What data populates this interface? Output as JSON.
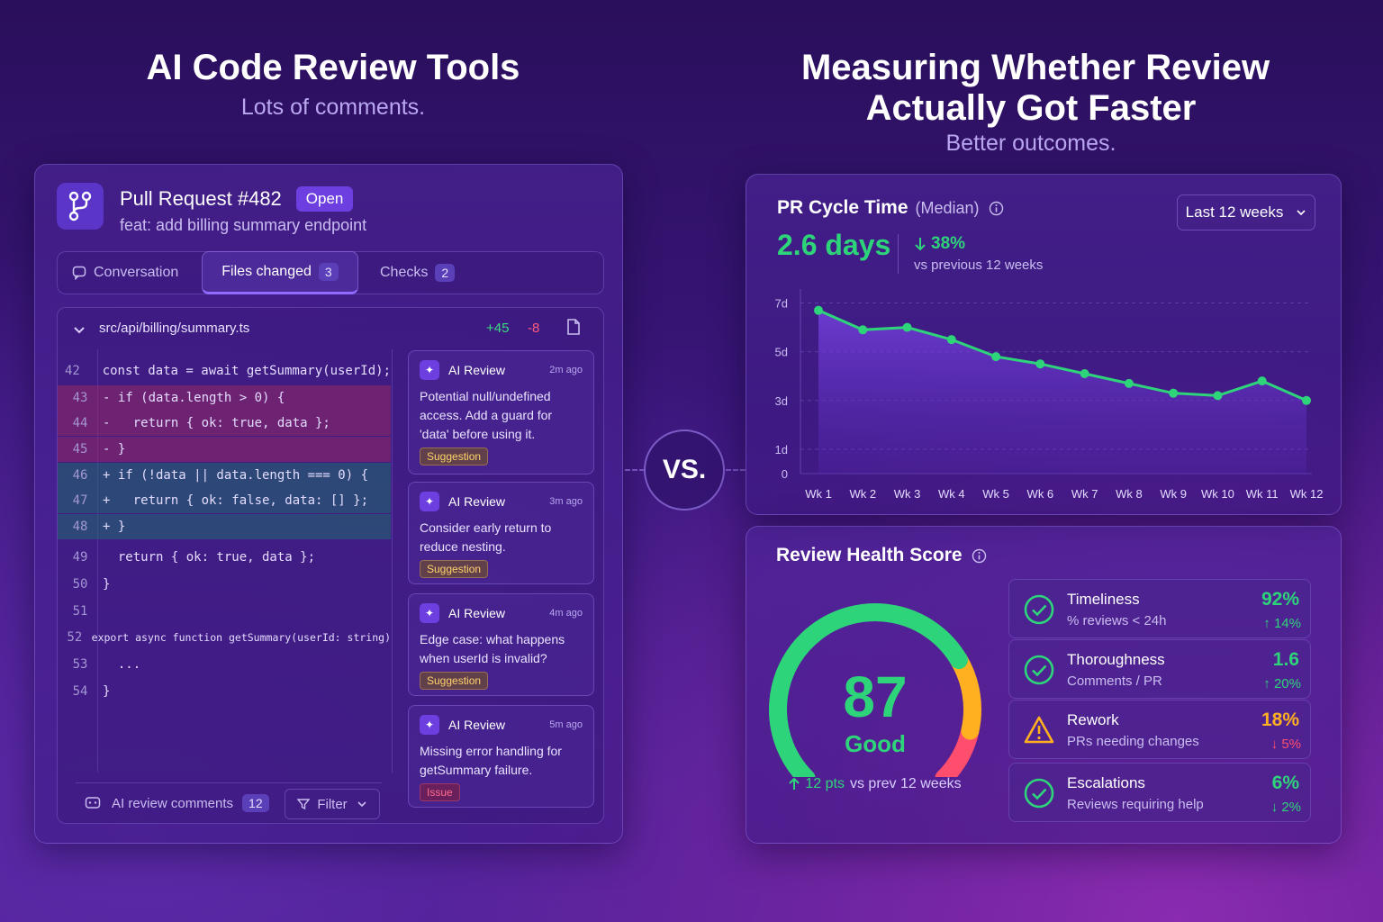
{
  "left": {
    "title": "AI Code Review Tools",
    "subtitle": "Lots of comments.",
    "pr": {
      "title": "Pull Request #482",
      "status": "Open",
      "description": "feat: add billing summary endpoint"
    },
    "tabs": [
      {
        "label": "Conversation",
        "count": ""
      },
      {
        "label": "Files changed",
        "count": "3"
      },
      {
        "label": "Checks",
        "count": "2"
      }
    ],
    "file": {
      "path": "src/api/billing/summary.ts",
      "additions": "+45",
      "deletions": "-8"
    },
    "code_lines": [
      {
        "num": "42",
        "code": "  const data = await getSummary(userId);",
        "type": "normal"
      },
      {
        "num": "43",
        "code": "- if (data.length > 0) {",
        "type": "del"
      },
      {
        "num": "44",
        "code": "-   return { ok: true, data };",
        "type": "del"
      },
      {
        "num": "45",
        "code": "- }",
        "type": "del"
      },
      {
        "num": "46",
        "code": "+ if (!data || data.length === 0) {",
        "type": "add"
      },
      {
        "num": "47",
        "code": "+   return { ok: false, data: [] };",
        "type": "add"
      },
      {
        "num": "48",
        "code": "+ }",
        "type": "add"
      },
      {
        "num": "49",
        "code": "  return { ok: true, data };",
        "type": "normal"
      },
      {
        "num": "50",
        "code": "}",
        "type": "normal"
      },
      {
        "num": "51",
        "code": "",
        "type": "normal"
      },
      {
        "num": "52",
        "code": "export async function getSummary(userId: string)",
        "type": "normal"
      },
      {
        "num": "53",
        "code": "  ...",
        "type": "normal"
      },
      {
        "num": "54",
        "code": "}",
        "type": "normal"
      }
    ],
    "comments": [
      {
        "author": "AI Review",
        "time": "2m ago",
        "text": "Potential null/undefined access. Add a guard for 'data' before using it.",
        "tag": "Suggestion"
      },
      {
        "author": "AI Review",
        "time": "3m ago",
        "text": "Consider early return to reduce nesting.",
        "tag": "Suggestion"
      },
      {
        "author": "AI Review",
        "time": "4m ago",
        "text": "Edge case: what happens when userId is invalid?",
        "tag": "Suggestion"
      },
      {
        "author": "AI Review",
        "time": "5m ago",
        "text": "Missing error handling for getSummary failure.",
        "tag": "Issue"
      }
    ],
    "footer": {
      "ai_comments_label": "AI review comments",
      "ai_comments_count": "12",
      "filter_label": "Filter"
    }
  },
  "vs_label": "VS.",
  "right": {
    "title_line1": "Measuring Whether Review",
    "title_line2": "Actually Got Faster",
    "subtitle": "Better outcomes.",
    "cycle": {
      "title": "PR Cycle Time",
      "title_qualifier": "(Median)",
      "range_select": "Last 12 weeks",
      "value": "2.6 days",
      "change": "38%",
      "change_caption": "vs previous 12 weeks"
    },
    "health": {
      "title": "Review Health Score",
      "score": 87,
      "score_label": "Good",
      "change": "12 pts",
      "change_caption": "vs prev 12 weeks",
      "metrics": [
        {
          "name": "Timeliness",
          "desc": "% reviews < 24h",
          "value": "92%",
          "delta": "14%",
          "direction": "up",
          "status": "good"
        },
        {
          "name": "Thoroughness",
          "desc": "Comments / PR",
          "value": "1.6",
          "delta": "20%",
          "direction": "up",
          "status": "good"
        },
        {
          "name": "Rework",
          "desc": "PRs needing changes",
          "value": "18%",
          "delta": "5%",
          "direction": "down",
          "status": "warning"
        },
        {
          "name": "Escalations",
          "desc": "Reviews requiring help",
          "value": "6%",
          "delta": "2%",
          "direction": "down",
          "status": "good"
        }
      ]
    }
  },
  "chart_data": {
    "type": "line",
    "categories": [
      "Wk 1",
      "Wk 2",
      "Wk 3",
      "Wk 4",
      "Wk 5",
      "Wk 6",
      "Wk 7",
      "Wk 8",
      "Wk 9",
      "Wk 10",
      "Wk 11",
      "Wk 12"
    ],
    "series": [
      {
        "values": [
          6.7,
          5.9,
          6.0,
          5.5,
          4.8,
          4.5,
          4.1,
          3.7,
          3.3,
          3.2,
          3.8,
          3.0
        ]
      }
    ],
    "y_ticks": [
      "0",
      "1d",
      "3d",
      "5d",
      "7d"
    ],
    "ylim": [
      0,
      7.5
    ],
    "grid": true
  },
  "colors": {
    "accent": "#6d3fe0",
    "good": "#2ed47a",
    "warn": "#ffb020",
    "bad": "#ff4d6d"
  }
}
